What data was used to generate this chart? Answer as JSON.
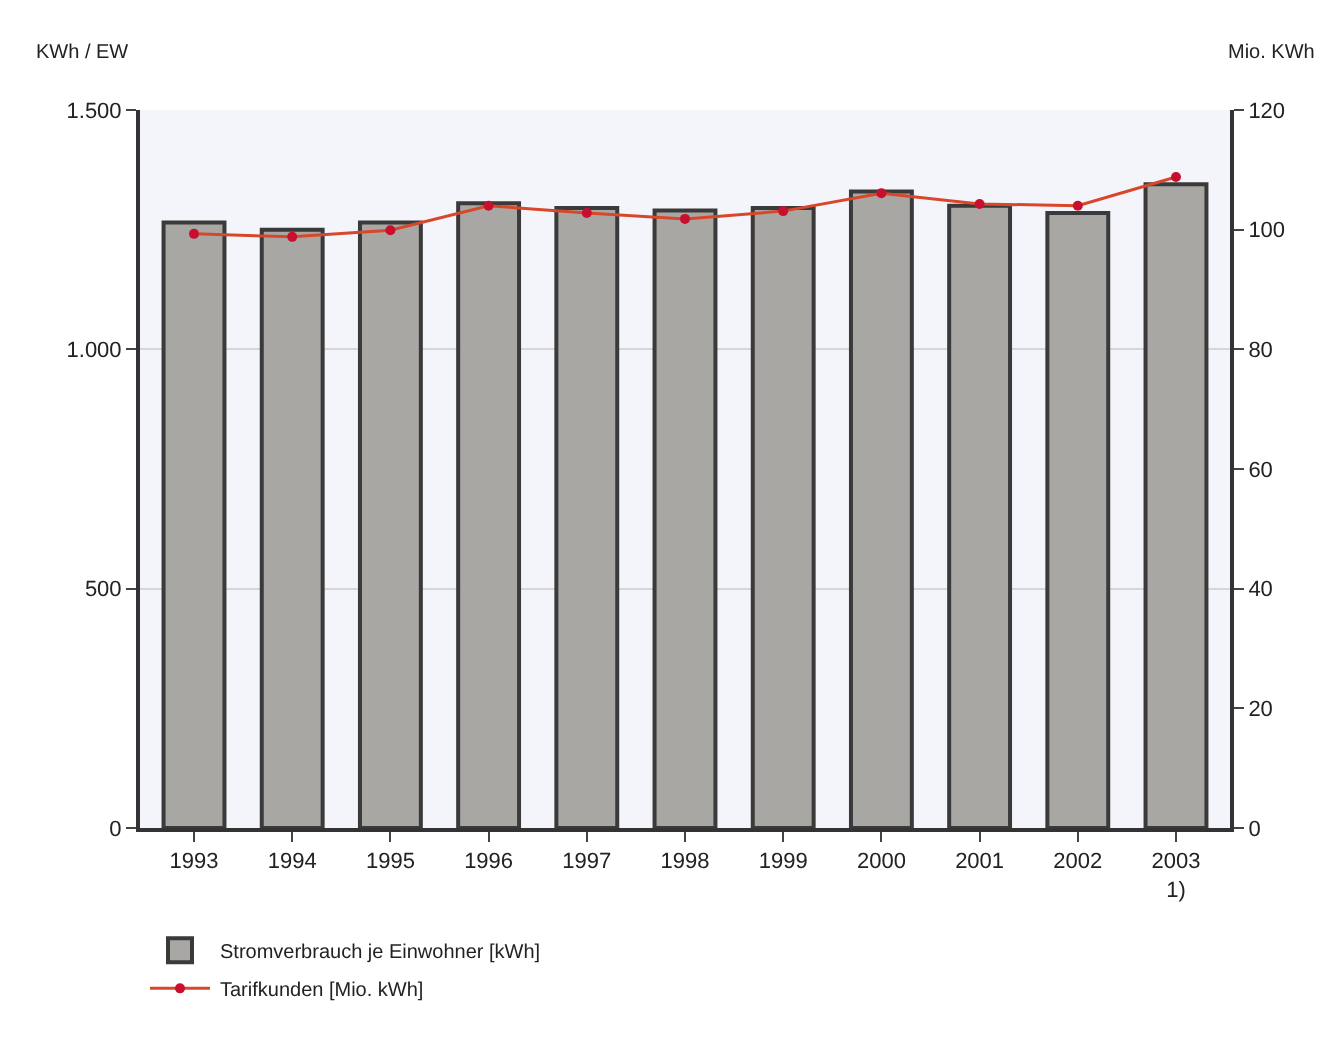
{
  "chart_data": {
    "type": "bar",
    "ylabel": "KWh / EW",
    "y2label": "Mio. KWh",
    "categories": [
      "1993",
      "1994",
      "1995",
      "1996",
      "1997",
      "1998",
      "1999",
      "2000",
      "2001",
      "2002",
      "2003\n1)"
    ],
    "series": [
      {
        "name": "Stromverbrauch je Einwohner [kWh]",
        "color": "#a9a7a4",
        "values": [
          1265,
          1250,
          1265,
          1305,
          1295,
          1290,
          1295,
          1330,
          1300,
          1285,
          1345
        ]
      },
      {
        "name": "Tarifkunden [Mio. kWh]",
        "type": "line",
        "axis": "y2",
        "color": "#d9472b",
        "marker": "circle",
        "values": [
          99.3,
          98.8,
          99.9,
          104.0,
          102.8,
          101.8,
          103.1,
          106.1,
          104.3,
          104.0,
          108.8
        ]
      }
    ],
    "ylim": [
      0,
      1500
    ],
    "yticks": [
      {
        "value": 0,
        "label": "0"
      },
      {
        "value": 500,
        "label": "500"
      },
      {
        "value": 1000,
        "label": "1.000"
      },
      {
        "value": 1500,
        "label": "1.500"
      }
    ],
    "y2lim": [
      0,
      120
    ],
    "y2ticks": [
      0,
      20,
      40,
      60,
      80,
      100,
      120
    ],
    "grid": "y",
    "legend": "bottom left"
  }
}
